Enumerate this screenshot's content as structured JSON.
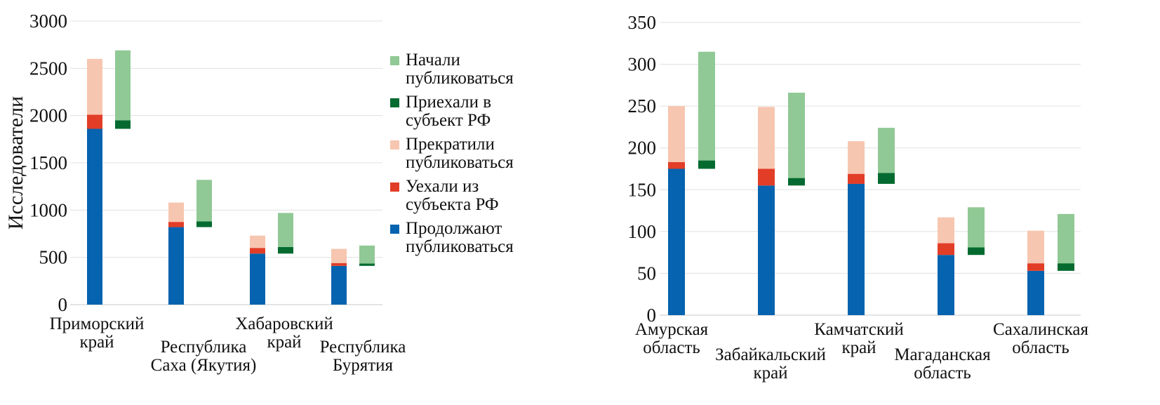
{
  "legend_order": [
    "started",
    "arrived",
    "stopped",
    "left",
    "continue"
  ],
  "series_info": {
    "continue": {
      "name": "Продолжают публиковаться",
      "lines": [
        "Продолжают",
        "публиковаться"
      ],
      "color": "#0563af"
    },
    "left": {
      "name": "Уехали из субъекта РФ",
      "lines": [
        "Уехали из",
        "субъекта РФ"
      ],
      "color": "#e23d27"
    },
    "stopped": {
      "name": "Прекратили публиковаться",
      "lines": [
        "Прекратили",
        "публиковаться"
      ],
      "color": "#f7c6b0"
    },
    "arrived": {
      "name": "Приехали в субъект РФ",
      "lines": [
        "Приехали в",
        "субъект РФ"
      ],
      "color": "#046a30"
    },
    "started": {
      "name": "Начали публиковаться",
      "lines": [
        "Начали",
        "публиковаться"
      ],
      "color": "#90c995"
    }
  },
  "chart_data": [
    {
      "type": "bar",
      "stacked": true,
      "ylabel": "Исследователи",
      "ylim": [
        0,
        3000
      ],
      "yticks": [
        0,
        500,
        1000,
        1500,
        2000,
        2500,
        3000
      ],
      "grid": true,
      "legend": "right",
      "categories": [
        {
          "name": "Приморский край",
          "lines": [
            "Приморский",
            "край"
          ]
        },
        {
          "name": "Республика Саха (Якутия)",
          "lines": [
            "Республика",
            "Саха (Якутия)"
          ]
        },
        {
          "name": "Хабаровский край",
          "lines": [
            "Хабаровский",
            "край"
          ]
        },
        {
          "name": "Республика Бурятия",
          "lines": [
            "Республика",
            "Бурятия"
          ]
        }
      ],
      "series": {
        "continue": [
          1860,
          820,
          540,
          410
        ],
        "left": [
          150,
          55,
          60,
          30
        ],
        "stopped": [
          590,
          205,
          130,
          150
        ],
        "arrived": [
          90,
          60,
          70,
          25
        ],
        "started": [
          740,
          440,
          360,
          190
        ]
      }
    },
    {
      "type": "bar",
      "stacked": true,
      "ylabel": "",
      "ylim": [
        0,
        350
      ],
      "yticks": [
        0,
        50,
        100,
        150,
        200,
        250,
        300,
        350
      ],
      "grid": true,
      "categories": [
        {
          "name": "Амурская область",
          "lines": [
            "Амурская",
            "область"
          ]
        },
        {
          "name": "Забайкальский край",
          "lines": [
            "Забайкальский",
            "край"
          ]
        },
        {
          "name": "Камчатский край",
          "lines": [
            "Камчатский",
            "край"
          ]
        },
        {
          "name": "Магаданская область",
          "lines": [
            "Магаданская",
            "область"
          ]
        },
        {
          "name": "Сахалинская область",
          "lines": [
            "Сахалинская",
            "область"
          ]
        }
      ],
      "series": {
        "continue": [
          175,
          155,
          157,
          72,
          53
        ],
        "left": [
          8,
          20,
          12,
          14,
          9
        ],
        "stopped": [
          67,
          74,
          39,
          31,
          39
        ],
        "arrived": [
          10,
          9,
          13,
          9,
          9
        ],
        "started": [
          130,
          102,
          54,
          48,
          59
        ]
      }
    }
  ]
}
